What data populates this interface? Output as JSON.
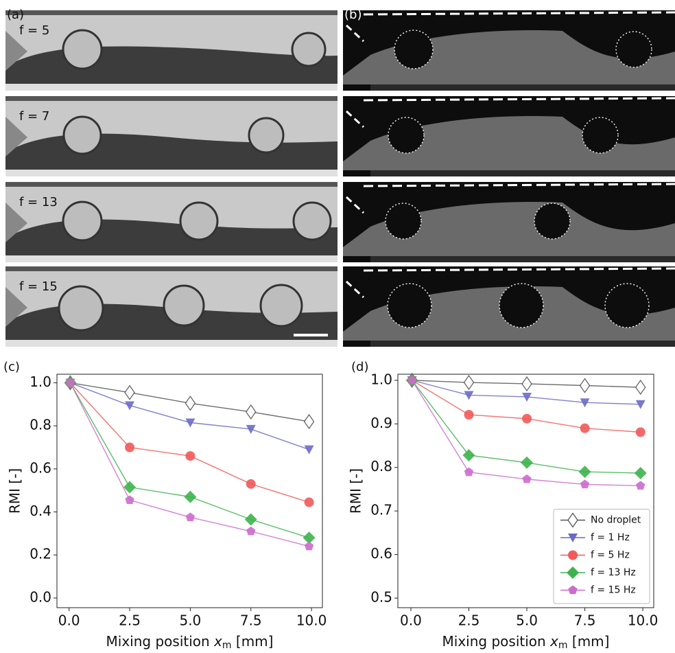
{
  "panels": {
    "a": {
      "label": "(a)",
      "rows": [
        "f = 5",
        "f = 7",
        "f = 13",
        "f = 15"
      ]
    },
    "b": {
      "label": "(b)"
    }
  },
  "chart_data": [
    {
      "type": "line",
      "panel": "(c)",
      "ylabel": "RMI [-]",
      "xlabel": {
        "text": "Mixing position ",
        "var": "x",
        "sub": "m",
        "unit": " [mm]"
      },
      "x": [
        0.05,
        2.5,
        5.0,
        7.5,
        9.9
      ],
      "xlim": [
        -0.5,
        10.45
      ],
      "ylim": [
        -0.045,
        1.04
      ],
      "xticks": [
        {
          "value": 0,
          "label": "0.0"
        },
        2.5,
        {
          "value": 5,
          "label": "5.0"
        },
        7.5,
        {
          "value": 10,
          "label": "10.0"
        }
      ],
      "yticks": [
        {
          "value": 0,
          "label": "0.0"
        },
        0.2,
        0.4,
        0.6,
        0.8,
        {
          "value": 1,
          "label": "1.0"
        }
      ],
      "legend": false,
      "series": [
        {
          "color": "#555555",
          "marker": "open-diamond",
          "values": [
            1.0,
            0.955,
            0.905,
            0.865,
            0.82
          ]
        },
        {
          "color": "#6a6ac8",
          "marker": "triangle-down",
          "values": [
            1.0,
            0.895,
            0.815,
            0.785,
            0.69
          ]
        },
        {
          "color": "#f05a5a",
          "marker": "circle",
          "values": [
            1.0,
            0.7,
            0.66,
            0.53,
            0.445
          ]
        },
        {
          "color": "#3cb44b",
          "marker": "diamond",
          "values": [
            1.0,
            0.515,
            0.47,
            0.365,
            0.28
          ]
        },
        {
          "color": "#cc6ccc",
          "marker": "pentagon",
          "values": [
            1.0,
            0.455,
            0.375,
            0.31,
            0.24
          ]
        }
      ]
    },
    {
      "type": "line",
      "panel": "(d)",
      "ylabel": "RMI [-]",
      "xlabel": {
        "text": "Mixing position ",
        "var": "x",
        "sub": "m",
        "unit": " [mm]"
      },
      "x": [
        0.05,
        2.5,
        5.0,
        7.5,
        9.9
      ],
      "xlim": [
        -0.56,
        10.47
      ],
      "ylim": [
        0.478,
        1.014
      ],
      "xticks": [
        {
          "value": 0,
          "label": "0.0"
        },
        2.5,
        {
          "value": 5,
          "label": "5.0"
        },
        7.5,
        {
          "value": 10,
          "label": "10.0"
        }
      ],
      "yticks": [
        0.5,
        0.6,
        0.7,
        0.8,
        0.9,
        {
          "value": 1,
          "label": "1.0"
        }
      ],
      "legend": "lower right",
      "series": [
        {
          "name": "No droplet",
          "color": "#555555",
          "marker": "open-diamond",
          "values": [
            1.0,
            0.995,
            0.992,
            0.988,
            0.984
          ]
        },
        {
          "name": "f = 1 Hz",
          "color": "#6a6ac8",
          "marker": "triangle-down",
          "values": [
            1.0,
            0.966,
            0.962,
            0.949,
            0.945
          ]
        },
        {
          "name": "f = 5 Hz",
          "color": "#f05a5a",
          "marker": "circle",
          "values": [
            1.0,
            0.921,
            0.912,
            0.89,
            0.881
          ]
        },
        {
          "name": "f = 13 Hz",
          "color": "#3cb44b",
          "marker": "diamond",
          "values": [
            1.0,
            0.828,
            0.811,
            0.79,
            0.787
          ]
        },
        {
          "name": "f = 15 Hz",
          "color": "#cc6ccc",
          "marker": "pentagon",
          "values": [
            1.0,
            0.789,
            0.773,
            0.761,
            0.758
          ]
        }
      ]
    }
  ]
}
